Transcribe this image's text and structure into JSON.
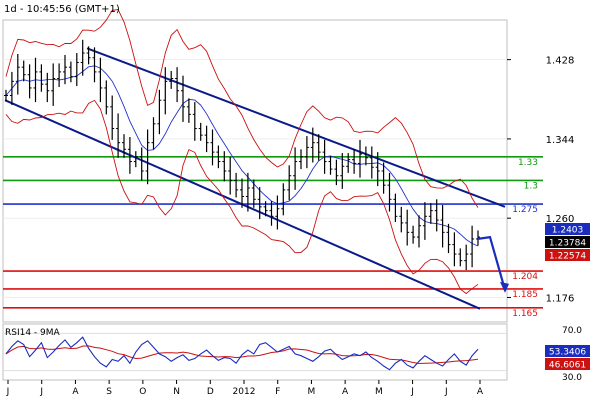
{
  "header": {
    "label": "1d - 10:45:56 (GMT+1)"
  },
  "rsi_label": "RSI14 - 9MA",
  "chart_data": [
    {
      "type": "line",
      "panel": "price",
      "ylim": [
        1.15,
        1.47
      ],
      "yticks": [
        {
          "label": "1.428",
          "value": 1.428
        },
        {
          "label": "1.344",
          "value": 1.344
        },
        {
          "label": "1.260",
          "value": 1.26
        },
        {
          "label": "1.176",
          "value": 1.176
        }
      ],
      "x_months": [
        "J",
        "J",
        "A",
        "S",
        "O",
        "N",
        "D",
        "2012",
        "F",
        "M",
        "A",
        "M",
        "J",
        "J",
        "A"
      ],
      "horizontal_levels": [
        {
          "label": "1.33",
          "value": 1.325,
          "color": "#119911"
        },
        {
          "label": "1.3",
          "value": 1.3,
          "color": "#119911"
        },
        {
          "label": "1.275",
          "value": 1.275,
          "color": "#2233cc"
        },
        {
          "label": "1.204",
          "value": 1.204,
          "color": "#dd1111"
        },
        {
          "label": "1.185",
          "value": 1.185,
          "color": "#dd1111"
        },
        {
          "label": "1.165",
          "value": 1.165,
          "color": "#dd1111"
        }
      ],
      "price_boxes": [
        {
          "label": "1.2403",
          "value": 1.2403,
          "bg": "#1a2dbd",
          "fg": "#ffffff"
        },
        {
          "label": "1.23784",
          "value": 1.23784,
          "bg": "#000000",
          "fg": "#ffffff"
        },
        {
          "label": "1.22574",
          "value": 1.22574,
          "bg": "#cc1111",
          "fg": "#ffffff"
        }
      ],
      "trend_channel": {
        "upper": {
          "from": [
            87,
            1.44
          ],
          "to": [
            505,
            1.272
          ]
        },
        "lower": {
          "from": [
            5,
            1.385
          ],
          "to": [
            480,
            1.164
          ]
        },
        "color": "#0a1a8a"
      },
      "projection_arrow": {
        "color": "#1a2dbd",
        "points": [
          [
            478,
            1.238
          ],
          [
            490,
            1.24
          ],
          [
            505,
            1.184
          ]
        ]
      },
      "close_series": [
        1.39,
        1.405,
        1.42,
        1.412,
        1.398,
        1.415,
        1.402,
        1.395,
        1.408,
        1.415,
        1.42,
        1.41,
        1.425,
        1.435,
        1.43,
        1.415,
        1.398,
        1.378,
        1.355,
        1.34,
        1.333,
        1.32,
        1.325,
        1.31,
        1.34,
        1.36,
        1.385,
        1.405,
        1.408,
        1.395,
        1.378,
        1.37,
        1.355,
        1.348,
        1.34,
        1.33,
        1.32,
        1.31,
        1.3,
        1.29,
        1.283,
        1.292,
        1.28,
        1.272,
        1.268,
        1.262,
        1.27,
        1.29,
        1.305,
        1.32,
        1.325,
        1.335,
        1.34,
        1.33,
        1.32,
        1.312,
        1.305,
        1.315,
        1.322,
        1.318,
        1.328,
        1.324,
        1.314,
        1.31,
        1.295,
        1.28,
        1.262,
        1.255,
        1.245,
        1.24,
        1.252,
        1.262,
        1.268,
        1.258,
        1.245,
        1.232,
        1.222,
        1.215,
        1.222,
        1.238,
        1.24
      ]
    },
    {
      "type": "line",
      "panel": "rsi",
      "title": "RSI14 - 9MA",
      "ylim": [
        20,
        80
      ],
      "yticks": [
        {
          "label": "70.0",
          "value": 70
        },
        {
          "label": "30.0",
          "value": 30
        }
      ],
      "value_boxes": [
        {
          "label": "53.3406",
          "value": 53.3406,
          "bg": "#1a2dbd",
          "fg": "#ffffff"
        },
        {
          "label": "46.6061",
          "value": 46.6061,
          "bg": "#cc1111",
          "fg": "#ffffff"
        }
      ],
      "rsi_series": [
        48,
        56,
        62,
        58,
        45,
        52,
        60,
        44,
        50,
        57,
        63,
        55,
        60,
        66,
        54,
        45,
        38,
        34,
        42,
        40,
        46,
        38,
        50,
        58,
        62,
        55,
        48,
        45,
        40,
        44,
        47,
        41,
        43,
        48,
        52,
        46,
        41,
        44,
        43,
        38,
        47,
        52,
        48,
        58,
        60,
        55,
        50,
        53,
        56,
        48,
        46,
        43,
        40,
        45,
        51,
        53,
        47,
        42,
        45,
        48,
        46,
        50,
        44,
        40,
        35,
        31,
        38,
        42,
        36,
        33,
        40,
        46,
        42,
        38,
        35,
        42,
        48,
        40,
        36,
        46,
        53
      ]
    }
  ]
}
